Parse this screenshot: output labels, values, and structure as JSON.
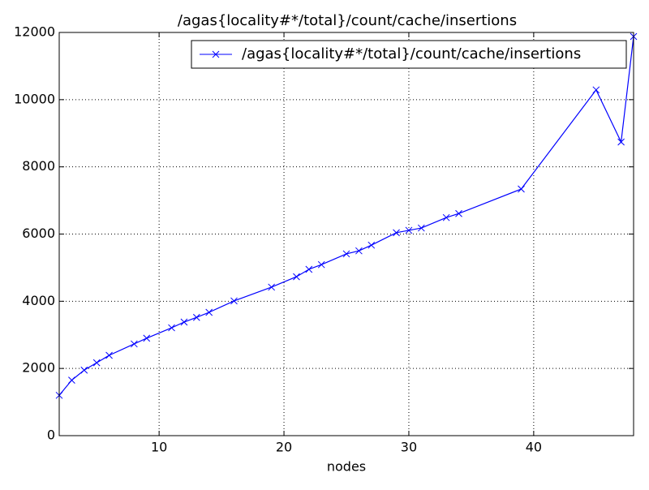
{
  "chart_data": {
    "type": "line",
    "title": "/agas{locality#*/total}/count/cache/insertions",
    "x_label": "nodes",
    "x": [
      2,
      3,
      4,
      5,
      6,
      8,
      9,
      11,
      12,
      13,
      14,
      16,
      19,
      21,
      22,
      23,
      25,
      26,
      27,
      29,
      30,
      31,
      33,
      34,
      39,
      45,
      47,
      48
    ],
    "series": [
      {
        "name": "/agas{locality#*/total}/count/cache/insertions",
        "color": "#0000ff",
        "values": [
          1200,
          1650,
          1950,
          2170,
          2390,
          2730,
          2900,
          3210,
          3380,
          3520,
          3670,
          4010,
          4420,
          4730,
          4950,
          5090,
          5410,
          5500,
          5670,
          6040,
          6110,
          6180,
          6490,
          6610,
          7340,
          10290,
          8740,
          11880
        ]
      }
    ],
    "xlim": [
      2,
      48
    ],
    "xticks": [
      10,
      20,
      30,
      40
    ],
    "ylim": [
      0,
      12000
    ],
    "yticks": [
      0,
      2000,
      4000,
      6000,
      8000,
      10000,
      12000
    ],
    "grid": true,
    "legend": "upper right"
  }
}
